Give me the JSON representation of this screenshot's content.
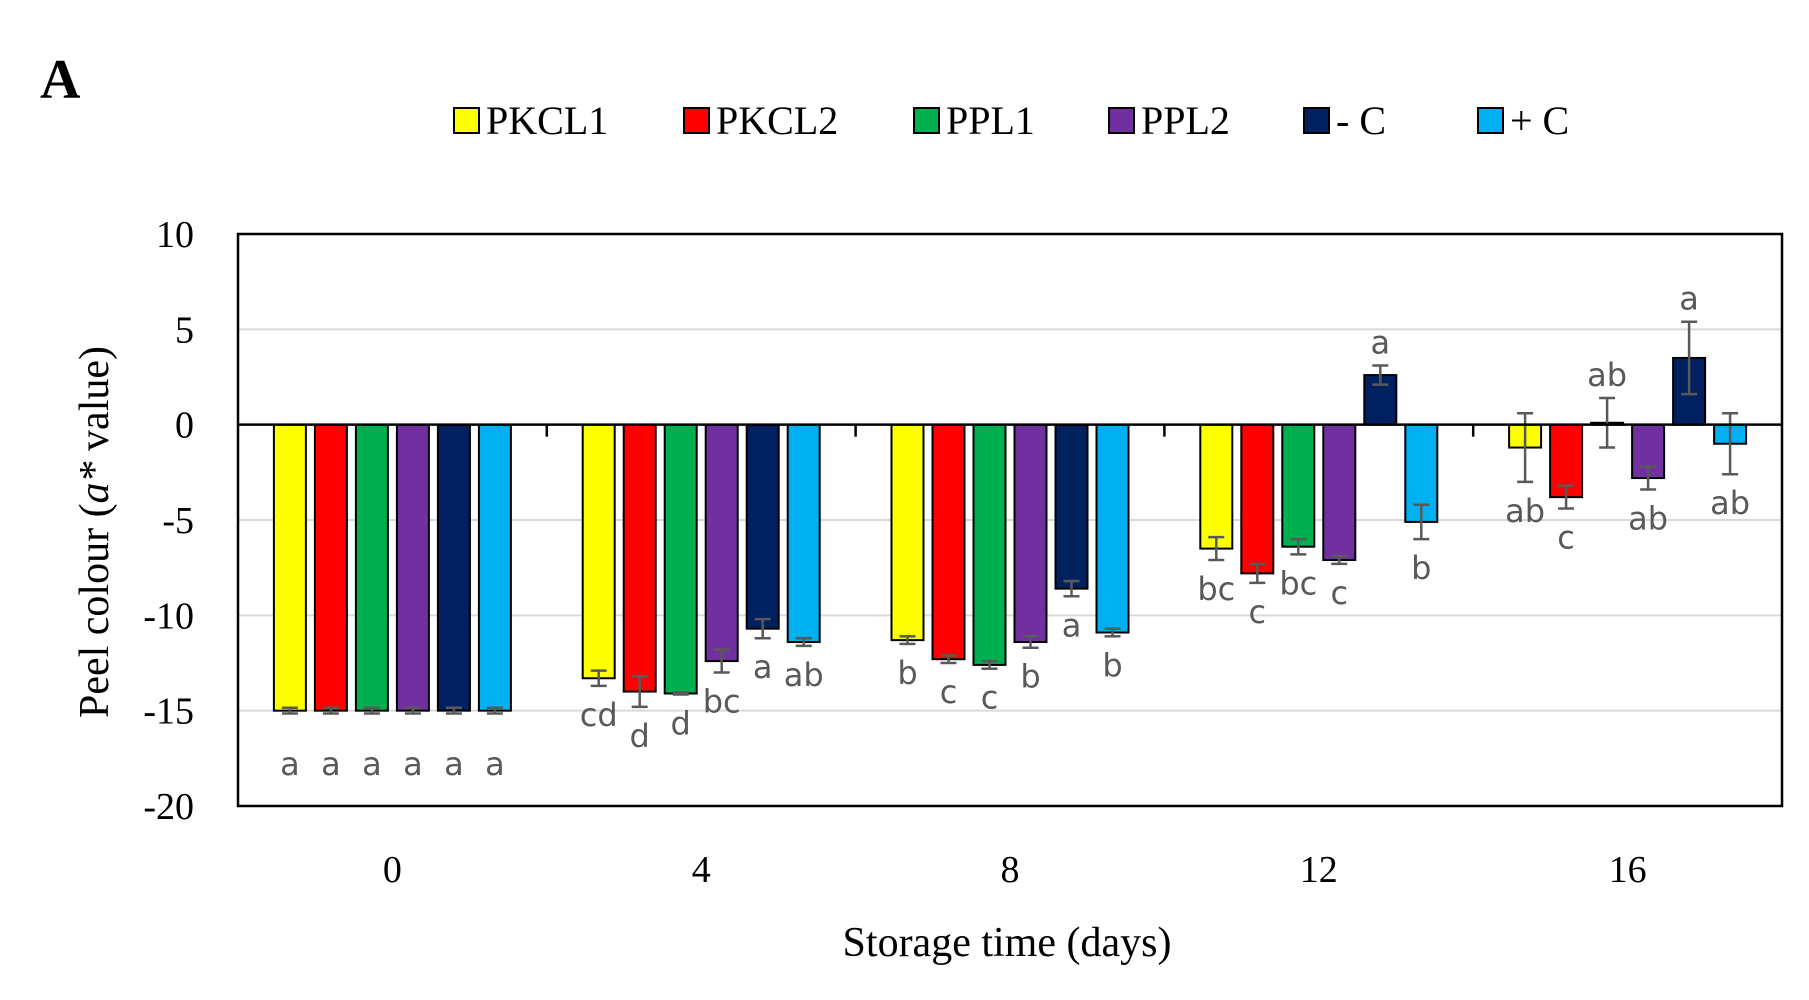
{
  "panel_label": "A",
  "chart_data": {
    "type": "bar",
    "title": "",
    "xlabel": "Storage time  (days)",
    "ylabel_prefix": "Peel colour (",
    "ylabel_italic": "a*",
    "ylabel_suffix": " value)",
    "ylim": [
      -20,
      10
    ],
    "yticks": [
      10,
      5,
      0,
      -5,
      -10,
      -15,
      -20
    ],
    "ytick_labels": [
      "10",
      "5",
      "0",
      "-5",
      "-10",
      "-15",
      "-20"
    ],
    "grid": true,
    "legend_position": "top",
    "categories": [
      "0",
      "4",
      "8",
      "12",
      "16"
    ],
    "series": [
      {
        "name": "PKCL1",
        "color": "#ffff00",
        "values": [
          -15.0,
          -13.3,
          -11.3,
          -6.5,
          -1.2
        ],
        "errors": [
          0.15,
          0.4,
          0.2,
          0.6,
          1.8
        ],
        "letters": [
          "a",
          "cd",
          "b",
          "bc",
          "ab"
        ]
      },
      {
        "name": "PKCL2",
        "color": "#ff0000",
        "values": [
          -15.0,
          -14.0,
          -12.3,
          -7.8,
          -3.8
        ],
        "errors": [
          0.15,
          0.8,
          0.2,
          0.5,
          0.6
        ],
        "letters": [
          "a",
          "d",
          "c",
          "c",
          "c"
        ]
      },
      {
        "name": "PPL1",
        "color": "#00b050",
        "values": [
          -15.0,
          -14.1,
          -12.6,
          -6.4,
          0.1
        ],
        "errors": [
          0.15,
          0.05,
          0.2,
          0.4,
          1.3
        ],
        "letters": [
          "a",
          "d",
          "c",
          "bc",
          "ab"
        ]
      },
      {
        "name": "PPL2",
        "color": "#7030a0",
        "values": [
          -15.0,
          -12.4,
          -11.4,
          -7.1,
          -2.8
        ],
        "errors": [
          0.15,
          0.6,
          0.3,
          0.2,
          0.6
        ],
        "letters": [
          "a",
          "bc",
          "b",
          "c",
          "ab"
        ]
      },
      {
        "name": "- C",
        "color": "#002060",
        "values": [
          -15.0,
          -10.7,
          -8.6,
          2.6,
          3.5
        ],
        "errors": [
          0.15,
          0.5,
          0.4,
          0.5,
          1.9
        ],
        "letters": [
          "a",
          "a",
          "a",
          "a",
          "a"
        ]
      },
      {
        "name": "+ C",
        "color": "#00b0f0",
        "values": [
          -15.0,
          -11.4,
          -10.9,
          -5.1,
          -1.0
        ],
        "errors": [
          0.15,
          0.2,
          0.2,
          0.9,
          1.6
        ],
        "letters": [
          "a",
          "ab",
          "b",
          "b",
          "ab"
        ]
      }
    ]
  }
}
